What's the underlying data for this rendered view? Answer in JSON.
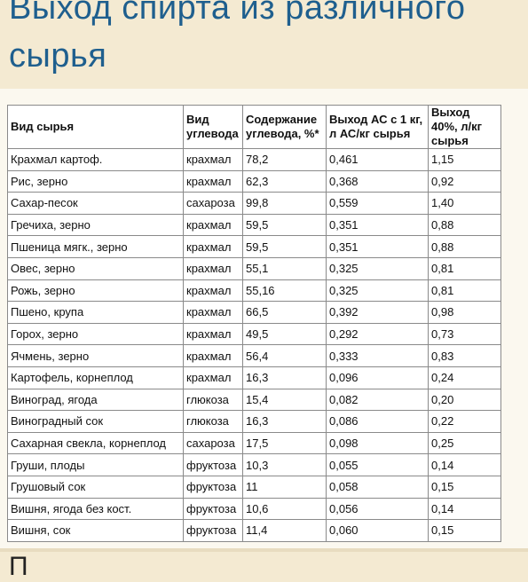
{
  "title": {
    "line1": "Выход спирта из различного",
    "line2": "сырья"
  },
  "table": {
    "headers": [
      "Вид сырья",
      "Вид углевода",
      "Содержание углевода, %*",
      "Выход АС с 1 кг, л АС/кг сырья",
      "Выход 40%, л/кг сырья"
    ],
    "rows": [
      [
        "Крахмал картоф.",
        "крахмал",
        "78,2",
        "0,461",
        "1,15"
      ],
      [
        "Рис, зерно",
        "крахмал",
        "62,3",
        "0,368",
        "0,92"
      ],
      [
        "Сахар-песок",
        "сахароза",
        "99,8",
        "0,559",
        "1,40"
      ],
      [
        "Гречиха, зерно",
        "крахмал",
        "59,5",
        "0,351",
        "0,88"
      ],
      [
        "Пшеница мягк., зерно",
        "крахмал",
        "59,5",
        "0,351",
        "0,88"
      ],
      [
        "Овес, зерно",
        "крахмал",
        "55,1",
        "0,325",
        "0,81"
      ],
      [
        "Рожь, зерно",
        "крахмал",
        "55,16",
        "0,325",
        "0,81"
      ],
      [
        "Пшено, крупа",
        "крахмал",
        "66,5",
        "0,392",
        "0,98"
      ],
      [
        "Горох, зерно",
        "крахмал",
        "49,5",
        "0,292",
        "0,73"
      ],
      [
        "Ячмень, зерно",
        "крахмал",
        "56,4",
        "0,333",
        "0,83"
      ],
      [
        "Картофель, корнеплод",
        "крахмал",
        "16,3",
        "0,096",
        "0,24"
      ],
      [
        "Виноград, ягода",
        "глюкоза",
        "15,4",
        "0,082",
        "0,20"
      ],
      [
        "Виноградный сок",
        "глюкоза",
        "16,3",
        "0,086",
        "0,22"
      ],
      [
        "Сахарная свекла, корнеплод",
        "сахароза",
        "17,5",
        "0,098",
        "0,25"
      ],
      [
        "Груши, плоды",
        "фруктоза",
        "10,3",
        "0,055",
        "0,14"
      ],
      [
        "Грушовый сок",
        "фруктоза",
        "11",
        "0,058",
        "0,15"
      ],
      [
        "Вишня, ягода без кост.",
        "фруктоза",
        "10,6",
        "0,056",
        "0,14"
      ],
      [
        "Вишня, сок",
        "фруктоза",
        "11,4",
        "0,060",
        "0,15"
      ]
    ]
  },
  "footer": {
    "partial_text": "П"
  }
}
